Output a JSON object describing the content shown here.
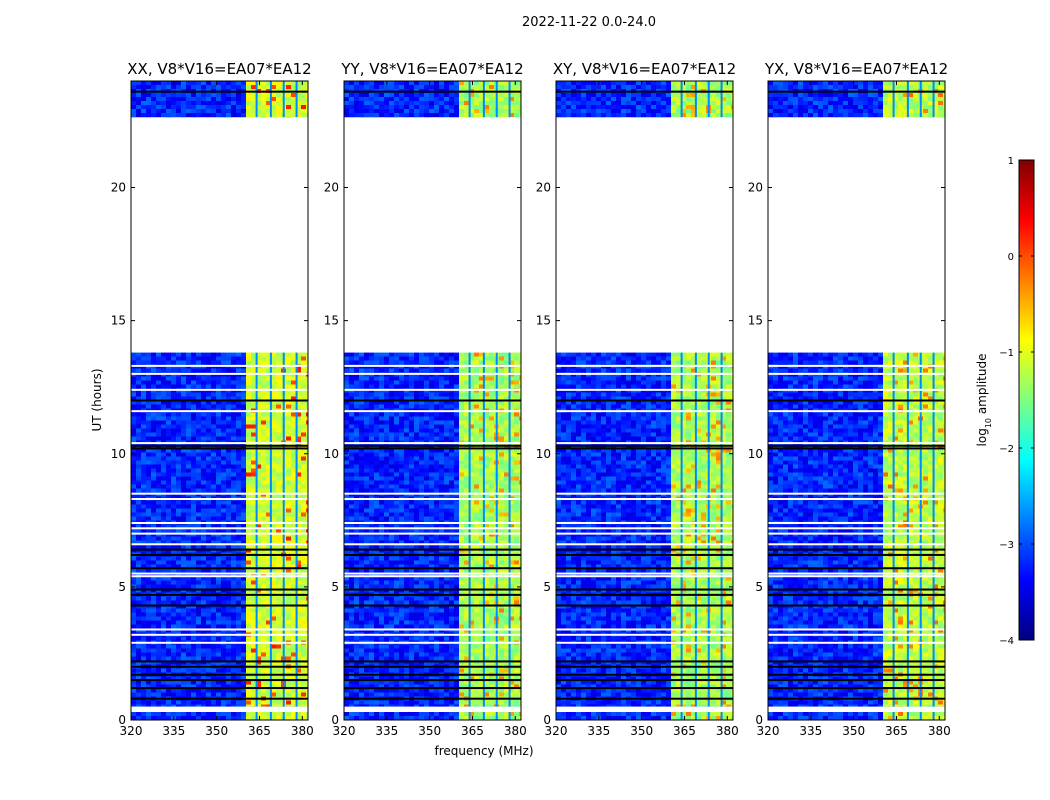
{
  "figure": {
    "suptitle": "2022-11-22 0.0-24.0",
    "ylabel": "UT (hours)",
    "xlabel": "frequency (MHz)"
  },
  "colorbar": {
    "label": "log",
    "label_sub": "10",
    "label_suffix": " amplitude",
    "range": [
      -4,
      1
    ],
    "ticks": [
      1,
      0,
      -1,
      -2,
      -3,
      -4
    ],
    "tick_labels": [
      "1",
      "0",
      "−1",
      "−2",
      "−3",
      "−4"
    ],
    "colormap": "jet",
    "colors": [
      "#00007f",
      "#0000ff",
      "#007fff",
      "#00ffff",
      "#7fff7f",
      "#ffff00",
      "#ff7f00",
      "#ff0000",
      "#7f0000"
    ]
  },
  "chart_data": {
    "type": "heatmap",
    "description_units": {
      "x": "MHz",
      "y": "hours",
      "value": "log10 amplitude"
    },
    "xlim": [
      320,
      382
    ],
    "ylim": [
      0,
      24
    ],
    "xticks": [
      320,
      335,
      350,
      365,
      380
    ],
    "yticks": [
      0,
      5,
      10,
      15,
      20
    ],
    "panels": [
      {
        "title": "XX, V8*V16=EA07*EA12",
        "band_level": -1.1,
        "hot_level": -0.1
      },
      {
        "title": "YY, V8*V16=EA07*EA12",
        "band_level": -1.3,
        "hot_level": -0.6
      },
      {
        "title": "XY, V8*V16=EA07*EA12",
        "band_level": -1.3,
        "hot_level": -0.6
      },
      {
        "title": "YX, V8*V16=EA07*EA12",
        "band_level": -1.2,
        "hot_level": -0.5
      }
    ],
    "background_level": -3.2,
    "signal_band_mhz": [
      359.5,
      382
    ],
    "channel_gap_lines_mhz": [
      364,
      369,
      373.5,
      378
    ],
    "data_time_ranges_hours": [
      [
        0.0,
        0.3
      ],
      [
        0.5,
        13.8
      ],
      [
        22.6,
        24.0
      ]
    ],
    "blank_time_ranges_hours": [
      [
        0.3,
        0.5
      ],
      [
        13.8,
        22.6
      ]
    ],
    "flag_dark_rows_hours": [
      0.8,
      1.2,
      1.5,
      1.7,
      2.0,
      2.2,
      4.3,
      4.7,
      4.9,
      5.7,
      6.2,
      6.4,
      10.2,
      10.3,
      12.0,
      23.6
    ],
    "flag_white_rows_hours": [
      2.9,
      3.2,
      3.4,
      5.4,
      5.5,
      6.6,
      7.0,
      7.2,
      7.4,
      8.3,
      8.5,
      10.4,
      11.6,
      12.4,
      13.0,
      13.3,
      22.6
    ]
  }
}
